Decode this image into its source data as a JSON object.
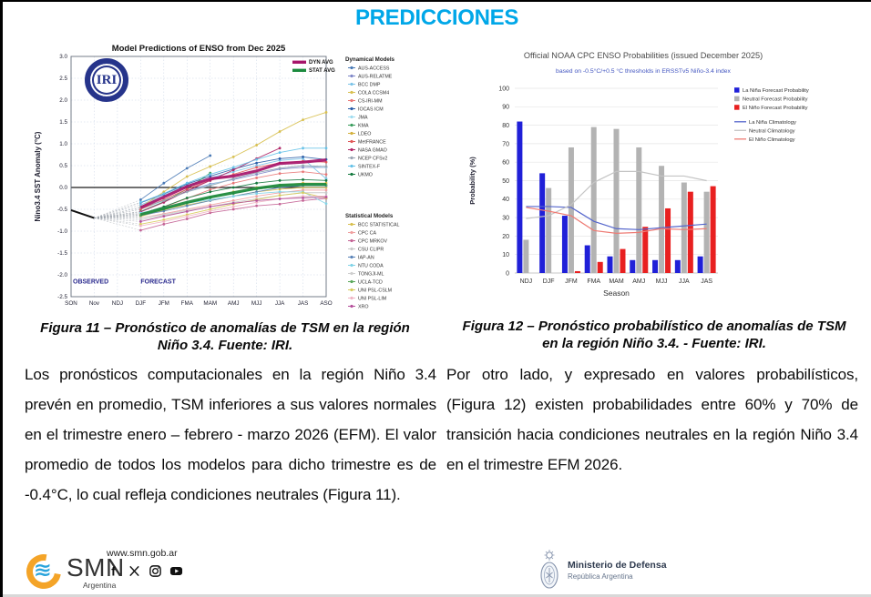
{
  "title": "PREDICCIONES",
  "accent_color": "#00A7E8",
  "captions": {
    "fig11_line1": "Figura 11 – Pronóstico de anomalías de TSM en la región",
    "fig11_line2": "Niño 3.4. Fuente: IRI.",
    "fig12_line1": "Figura 12 – Pronóstico probabilístico de anomalías de TSM",
    "fig12_line2": "en la región Niño 3.4. - Fuente: IRI."
  },
  "paragraphs": {
    "left": "Los pronósticos computacionales en la región Niño 3.4 prevén en promedio, TSM inferiores a sus valores normales en el trimestre enero – febrero - marzo 2026 (EFM). El valor promedio de todos los modelos para dicho trimestre es de -0.4°C, lo cual refleja condiciones neutrales (Figura 11).",
    "right": "Por otro lado, y expresado en valores probabilísticos, (Figura 12) existen probabilidades entre 60% y 70% de transición hacia condiciones neutrales en la región Niño 3.4 en el trimestre EFM 2026."
  },
  "footer": {
    "smn_name": "SMN",
    "smn_country": "Argentina",
    "website": "www.smn.gob.ar",
    "social_icons": [
      "facebook-icon",
      "x-icon",
      "instagram-icon",
      "youtube-icon"
    ],
    "mindef_line1": "Ministerio de Defensa",
    "mindef_line2": "República Argentina"
  },
  "chart_data": [
    {
      "type": "line",
      "title": "Model Predictions of ENSO from Dec 2025",
      "ylabel": "Nino3.4 SST Anomaly (°C)",
      "xlabel": "",
      "ylim": [
        -2.5,
        3.0
      ],
      "ytick": 0.5,
      "categories": [
        "SON",
        "Nov",
        "NDJ",
        "DJF",
        "JFM",
        "FMA",
        "MAM",
        "AMJ",
        "MJJ",
        "JJA",
        "JAS",
        "ASO"
      ],
      "annotations": [
        "OBSERVED",
        "FORECAST"
      ],
      "observed": {
        "name": "OBSERVED",
        "categories": [
          "SON",
          "Nov"
        ],
        "values": [
          -0.52,
          -0.7
        ]
      },
      "forecast_start_index": 3,
      "averages": [
        {
          "name": "DYN AVG",
          "color": "#a6156a",
          "values": [
            -0.46,
            -0.22,
            0.02,
            0.2,
            0.26,
            0.38,
            0.55,
            0.58,
            0.63
          ]
        },
        {
          "name": "STAT AVG",
          "color": "#1b8a3e",
          "values": [
            -0.62,
            -0.48,
            -0.34,
            -0.22,
            -0.12,
            -0.02,
            0.05,
            0.07,
            0.07
          ]
        }
      ],
      "model_groups": [
        {
          "label": "Dynamical Models",
          "models": [
            {
              "name": "AUS-ACCESS",
              "color": "#4a7ab5",
              "values": [
                -0.28,
                0.1,
                0.44,
                0.73,
                null,
                null,
                null,
                null,
                null
              ]
            },
            {
              "name": "AUS-RELATME",
              "color": "#8088c8",
              "values": [
                -0.55,
                -0.33,
                -0.08,
                0.08,
                0.18,
                0.3,
                0.42,
                0.46,
                0.46
              ]
            },
            {
              "name": "BCC DMP",
              "color": "#7cc4e8",
              "values": [
                -0.4,
                -0.18,
                0.05,
                0.22,
                0.36,
                0.5,
                0.62,
                0.66,
                0.2
              ]
            },
            {
              "name": "COLA CCSM4",
              "color": "#d8c050",
              "values": [
                -0.45,
                -0.1,
                0.25,
                0.48,
                0.7,
                0.97,
                1.28,
                1.55,
                1.72
              ]
            },
            {
              "name": "CS-IRI-MM",
              "color": "#e87878",
              "values": [
                -0.62,
                -0.45,
                -0.25,
                -0.05,
                0.1,
                0.22,
                0.32,
                0.36,
                0.3
              ]
            },
            {
              "name": "IOCAS ICM",
              "color": "#2d5fa8",
              "values": [
                -0.35,
                -0.15,
                0.08,
                0.26,
                0.42,
                0.56,
                0.66,
                0.7,
                0.64
              ]
            },
            {
              "name": "JMA",
              "color": "#9fdcf0",
              "values": [
                -0.5,
                -0.3,
                -0.1,
                0.06,
                0.2,
                0.34,
                0.44,
                0.5,
                0.46
              ]
            },
            {
              "name": "KMA",
              "color": "#3c9e5f",
              "values": [
                -0.55,
                -0.33,
                -0.04,
                0.33,
                null,
                null,
                null,
                null,
                null
              ]
            },
            {
              "name": "LDEO",
              "color": "#d3b13c",
              "values": [
                -0.66,
                -0.52,
                -0.36,
                -0.22,
                -0.1,
                0.0,
                0.06,
                0.1,
                0.1
              ]
            },
            {
              "name": "MetFRANCE",
              "color": "#e05858",
              "values": [
                -0.5,
                -0.28,
                -0.04,
                0.16,
                0.3,
                0.46,
                0.56,
                0.6,
                0.58
              ]
            },
            {
              "name": "NASA GMAO",
              "color": "#b02868",
              "values": [
                -0.56,
                -0.34,
                -0.08,
                0.16,
                0.4,
                0.66,
                0.9,
                null,
                null
              ]
            },
            {
              "name": "NCEP CFSv2",
              "color": "#9aa4b2",
              "values": [
                -0.46,
                -0.3,
                -0.1,
                0.04,
                0.2,
                0.34,
                0.44,
                0.5,
                0.48
              ]
            },
            {
              "name": "SINTEX-F",
              "color": "#66c2e8",
              "values": [
                -0.34,
                -0.14,
                0.1,
                0.3,
                0.46,
                0.64,
                0.8,
                0.9,
                0.9
              ]
            },
            {
              "name": "UKMO",
              "color": "#167a40",
              "values": [
                -0.6,
                -0.44,
                -0.24,
                -0.1,
                0.0,
                0.1,
                0.16,
                0.18,
                0.16
              ]
            }
          ]
        },
        {
          "label": "Statistical Models",
          "models": [
            {
              "name": "BCC STATISTICAL",
              "color": "#d8c050",
              "values": [
                -0.6,
                -0.5,
                -0.4,
                -0.3,
                -0.2,
                -0.1,
                -0.04,
                0.0,
                0.0
              ]
            },
            {
              "name": "CPC CA",
              "color": "#f0a0a0",
              "values": [
                -0.7,
                -0.6,
                -0.5,
                -0.4,
                -0.3,
                -0.2,
                -0.12,
                -0.06,
                -0.06
              ]
            },
            {
              "name": "CPC MRKOV",
              "color": "#c46496",
              "values": [
                -0.98,
                -0.84,
                -0.72,
                -0.58,
                -0.5,
                -0.42,
                -0.38,
                -0.3,
                -0.25
              ]
            },
            {
              "name": "CSU CLIPR",
              "color": "#c8c8c8",
              "values": [
                -0.74,
                -0.64,
                -0.54,
                -0.44,
                -0.34,
                -0.26,
                -0.18,
                -0.12,
                -0.12
              ]
            },
            {
              "name": "IAP-AN",
              "color": "#5b84b8",
              "values": [
                -0.64,
                -0.54,
                -0.42,
                -0.3,
                -0.2,
                -0.1,
                0.0,
                0.04,
                0.04
              ]
            },
            {
              "name": "NTU CODA",
              "color": "#82d4e8",
              "values": [
                -0.58,
                -0.48,
                -0.36,
                -0.28,
                -0.2,
                -0.14,
                -0.1,
                -0.1,
                -0.37
              ]
            },
            {
              "name": "TONGJI-ML",
              "color": "#cfcfcf",
              "values": [
                -0.7,
                -0.62,
                -0.52,
                -0.44,
                -0.36,
                -0.3,
                -0.26,
                -0.22,
                -0.22
              ]
            },
            {
              "name": "UCLA-TCD",
              "color": "#5aa85a",
              "values": [
                -0.64,
                -0.5,
                -0.36,
                -0.24,
                -0.14,
                -0.04,
                0.02,
                0.06,
                0.06
              ]
            },
            {
              "name": "UNI PSL-CSLM",
              "color": "#d8cc60",
              "values": [
                -0.84,
                -0.74,
                -0.62,
                -0.5,
                -0.38,
                -0.28,
                -0.18,
                -0.12,
                -0.24
              ]
            },
            {
              "name": "UNI PSL-LIM",
              "color": "#f0b4c4",
              "values": [
                -0.88,
                -0.78,
                -0.66,
                -0.54,
                -0.44,
                -0.34,
                -0.26,
                -0.2,
                -0.2
              ]
            },
            {
              "name": "XRO",
              "color": "#b5519c",
              "values": [
                -0.78,
                -0.66,
                -0.55,
                -0.44,
                -0.36,
                -0.3,
                -0.26,
                -0.24,
                -0.22
              ]
            }
          ]
        }
      ]
    },
    {
      "type": "bar",
      "title": "Official NOAA CPC ENSO Probabilities (issued December 2025)",
      "subtitle": "based on -0.5°C/+0.5 °C thresholds in ERSSTv5 Niño-3.4 index",
      "xlabel": "Season",
      "ylabel": "Probability (%)",
      "ylim": [
        0,
        100
      ],
      "ytick": 10,
      "legend_position": "right",
      "categories": [
        "NDJ",
        "DJF",
        "JFM",
        "FMA",
        "MAM",
        "AMJ",
        "MJJ",
        "JJA",
        "JAS"
      ],
      "bar_series": [
        {
          "name": "La Niña Forecast Probability",
          "color": "#2020d8",
          "values": [
            82,
            54,
            31,
            15,
            9,
            7,
            7,
            7,
            9
          ]
        },
        {
          "name": "Neutral Forecast Probability",
          "color": "#b3b3b3",
          "values": [
            18,
            46,
            68,
            79,
            78,
            68,
            58,
            49,
            44
          ]
        },
        {
          "name": "El Niño Forecast Probability",
          "color": "#e82020",
          "values": [
            0,
            0,
            1,
            6,
            13,
            25,
            35,
            44,
            47
          ]
        }
      ],
      "line_series": [
        {
          "name": "La Niña Climatology",
          "color": "#5566cc",
          "values": [
            36,
            36,
            35.5,
            28,
            24,
            23.5,
            24.5,
            25.5,
            26.5
          ]
        },
        {
          "name": "Neutral Climatology",
          "color": "#c4c4c4",
          "values": [
            29.5,
            31,
            37,
            49,
            55,
            55,
            52.5,
            52.5,
            50
          ]
        },
        {
          "name": "El Niño Climatology",
          "color": "#ee7b74",
          "values": [
            35.5,
            33.5,
            31,
            23,
            21.5,
            22,
            24,
            23.5,
            24
          ]
        }
      ]
    }
  ]
}
